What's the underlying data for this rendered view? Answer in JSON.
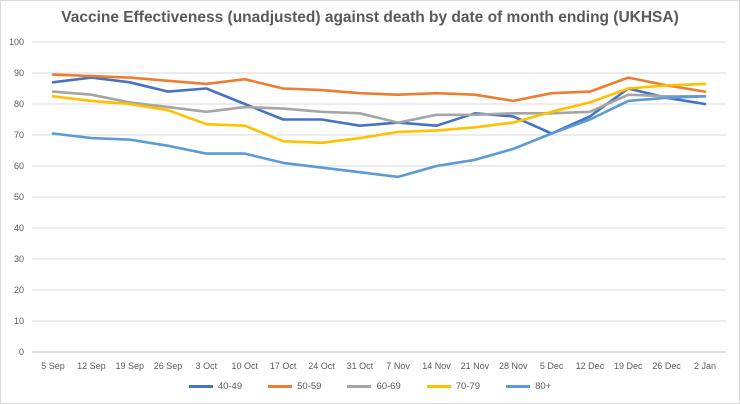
{
  "chart_data": {
    "type": "line",
    "title": "Vaccine Effectiveness (unadjusted) against death by date of month ending (UKHSA)",
    "xlabel": "",
    "ylabel": "",
    "ylim": [
      0,
      100
    ],
    "yticks": [
      0,
      10,
      20,
      30,
      40,
      50,
      60,
      70,
      80,
      90,
      100
    ],
    "grid": true,
    "legend_position": "bottom",
    "categories": [
      "5 Sep",
      "12 Sep",
      "19 Sep",
      "26 Sep",
      "3 Oct",
      "10 Oct",
      "17 Oct",
      "24 Oct",
      "31 Oct",
      "7 Nov",
      "14 Nov",
      "21 Nov",
      "28 Nov",
      "5 Dec",
      "12 Dec",
      "19 Dec",
      "26 Dec",
      "2 Jan"
    ],
    "series": [
      {
        "name": "40-49",
        "color": "#4472c4",
        "values": [
          87,
          88.5,
          87,
          84,
          85,
          80,
          75,
          75,
          73,
          74,
          73,
          77,
          76,
          70.5,
          76,
          85,
          82,
          80
        ]
      },
      {
        "name": "50-59",
        "color": "#ed7d31",
        "values": [
          89.5,
          89,
          88.5,
          87.5,
          86.5,
          88,
          85,
          84.5,
          83.5,
          83,
          83.5,
          83,
          81,
          83.5,
          84,
          88.5,
          86,
          84
        ]
      },
      {
        "name": "60-69",
        "color": "#a5a5a5",
        "values": [
          84,
          83,
          80.5,
          79,
          77.5,
          79,
          78.5,
          77.5,
          77,
          74,
          76.5,
          76.5,
          77,
          77,
          77.5,
          83,
          82.5,
          82.5
        ]
      },
      {
        "name": "70-79",
        "color": "#ffc000",
        "values": [
          82.5,
          81,
          80,
          78,
          73.5,
          73,
          68,
          67.5,
          69,
          71,
          71.5,
          72.5,
          74,
          77.5,
          80.5,
          85,
          86,
          86.5
        ]
      },
      {
        "name": "80+",
        "color": "#5b9bd5",
        "values": [
          70.5,
          69,
          68.5,
          66.5,
          64,
          64,
          61,
          59.5,
          58,
          56.5,
          60,
          62,
          65.5,
          70.5,
          75,
          81,
          82,
          82.5
        ]
      }
    ]
  }
}
